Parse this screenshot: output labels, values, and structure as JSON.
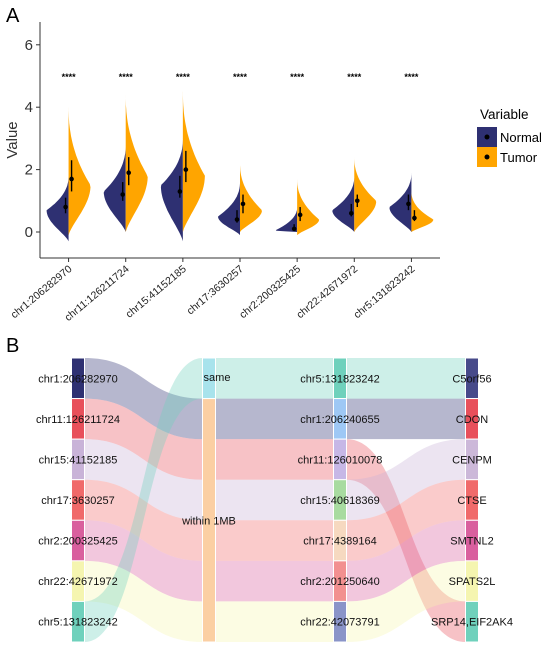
{
  "panels": {
    "a_label": "A",
    "b_label": "B"
  },
  "colors": {
    "normal": "#2E3072",
    "tumor": "#FFA500",
    "axis": "#333333"
  },
  "legend": {
    "title": "Variable",
    "items": [
      {
        "label": "Normal",
        "color": "#2E3072"
      },
      {
        "label": "Tumor",
        "color": "#FFA500"
      }
    ]
  },
  "chart_data": [
    {
      "type": "split-violin",
      "ylabel": "Value",
      "ylim": [
        -0.7,
        6.6
      ],
      "yticks": [
        0,
        2,
        4,
        6
      ],
      "categories": [
        "chr1:206282970",
        "chr11:126211724",
        "chr15:41152185",
        "chr17:3630257",
        "chr2:200325425",
        "chr22:42671972",
        "chr5:131823242"
      ],
      "significance": [
        "****",
        "****",
        "****",
        "****",
        "****",
        "****",
        "****"
      ],
      "series": [
        {
          "name": "Normal",
          "min": [
            -0.3,
            0.0,
            -0.3,
            -0.1,
            0.0,
            0.0,
            0.0
          ],
          "max": [
            1.8,
            2.8,
            3.0,
            1.6,
            0.8,
            1.8,
            1.9
          ],
          "mode": [
            0.7,
            1.3,
            1.5,
            0.5,
            0.05,
            0.7,
            0.8
          ],
          "median": [
            0.8,
            1.2,
            1.3,
            0.4,
            0.1,
            0.6,
            0.9
          ],
          "q1": [
            0.6,
            1.0,
            1.1,
            0.3,
            0.05,
            0.5,
            0.7
          ],
          "q3": [
            1.1,
            1.6,
            1.8,
            0.7,
            0.25,
            0.9,
            1.2
          ]
        },
        {
          "name": "Tumor",
          "min": [
            -0.1,
            0.0,
            0.0,
            0.0,
            -0.1,
            0.0,
            0.0
          ],
          "max": [
            4.0,
            4.4,
            4.5,
            2.2,
            1.7,
            2.4,
            1.3
          ],
          "mode": [
            1.5,
            1.8,
            1.8,
            0.7,
            0.4,
            1.0,
            0.4
          ],
          "median": [
            1.7,
            1.9,
            2.0,
            0.9,
            0.55,
            1.0,
            0.45
          ],
          "q1": [
            1.3,
            1.5,
            1.6,
            0.6,
            0.35,
            0.8,
            0.35
          ],
          "q3": [
            2.3,
            2.4,
            2.6,
            1.2,
            0.8,
            1.2,
            0.7
          ]
        }
      ]
    },
    {
      "type": "alluvial",
      "axes": [
        {
          "strata": [
            {
              "label": "chr1:206282970",
              "color": "#2E3072"
            },
            {
              "label": "chr11:126211724",
              "color": "#E8505B"
            },
            {
              "label": "chr15:41152185",
              "color": "#C9B3D8"
            },
            {
              "label": "chr17:3630257",
              "color": "#F06A6A"
            },
            {
              "label": "chr2:200325425",
              "color": "#D95F9E"
            },
            {
              "label": "chr22:42671972",
              "color": "#F5F5B0"
            },
            {
              "label": "chr5:131823242",
              "color": "#6FD1BC"
            }
          ]
        },
        {
          "strata": [
            {
              "label": "same",
              "color": "#A8E3EC",
              "weight": 1
            },
            {
              "label": "within 1MB",
              "color": "#FBCFA3",
              "weight": 6
            }
          ]
        },
        {
          "strata": [
            {
              "label": "chr5:131823242",
              "color": "#6FD1BC"
            },
            {
              "label": "chr1:206240655",
              "color": "#9EC8F5"
            },
            {
              "label": "chr11:126010078",
              "color": "#C6B7E6"
            },
            {
              "label": "chr15:40618369",
              "color": "#A8DBA0"
            },
            {
              "label": "chr17:4389164",
              "color": "#F6D9C0"
            },
            {
              "label": "chr2:201250640",
              "color": "#F29090"
            },
            {
              "label": "chr22:42073791",
              "color": "#8A94C8"
            }
          ]
        },
        {
          "strata": [
            {
              "label": "C5orf56",
              "color": "#474A8A"
            },
            {
              "label": "CDON",
              "color": "#E8505B"
            },
            {
              "label": "CENPM",
              "color": "#CCB8D9"
            },
            {
              "label": "CTSE",
              "color": "#F06A6A"
            },
            {
              "label": "SMTNL2",
              "color": "#D95F9E"
            },
            {
              "label": "SPATS2L",
              "color": "#F5F5B0"
            },
            {
              "label": "SRP14,EIF2AK4",
              "color": "#6FD1BC"
            }
          ]
        }
      ],
      "flows": [
        {
          "path": [
            0,
            1,
            1,
            1
          ],
          "color": "#2E3072"
        },
        {
          "path": [
            1,
            1,
            2,
            6
          ],
          "color": "#E8505B"
        },
        {
          "path": [
            2,
            1,
            3,
            2
          ],
          "color": "#C9B3D8"
        },
        {
          "path": [
            3,
            1,
            4,
            3
          ],
          "color": "#F06A6A"
        },
        {
          "path": [
            4,
            1,
            5,
            4
          ],
          "color": "#D95F9E"
        },
        {
          "path": [
            5,
            1,
            6,
            5
          ],
          "color": "#F5F5B0"
        },
        {
          "path": [
            6,
            0,
            0,
            0
          ],
          "color": "#6FD1BC"
        }
      ]
    }
  ]
}
